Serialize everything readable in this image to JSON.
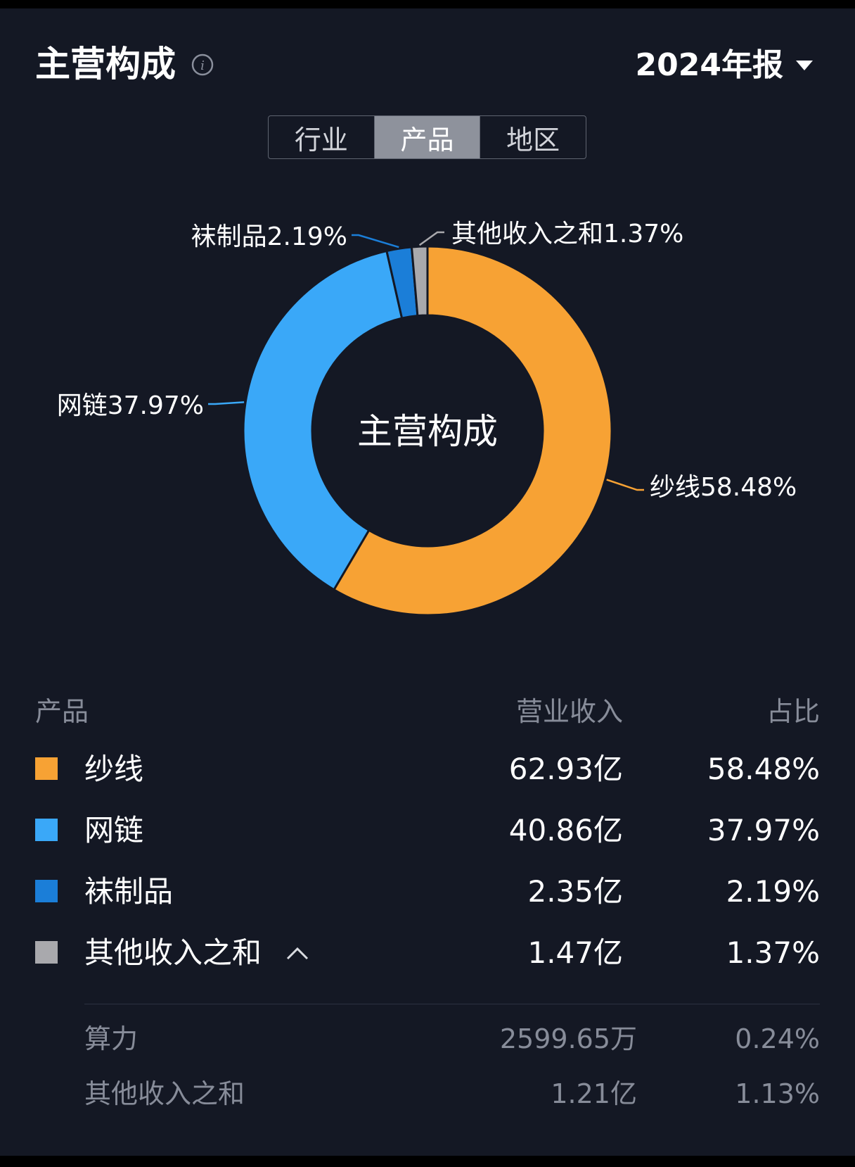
{
  "header": {
    "title": "主营构成",
    "period": "2024年报"
  },
  "tabs": [
    {
      "label": "行业",
      "active": false
    },
    {
      "label": "产品",
      "active": true
    },
    {
      "label": "地区",
      "active": false
    }
  ],
  "chart_data": {
    "type": "pie",
    "center_label": "主营构成",
    "categories": [
      "纱线",
      "网链",
      "袜制品",
      "其他收入之和"
    ],
    "values": [
      58.48,
      37.97,
      2.19,
      1.37
    ],
    "labels": [
      "纱线58.48%",
      "网链37.97%",
      "袜制品2.19%",
      "其他收入之和1.37%"
    ],
    "colors": [
      "#F7A234",
      "#3AA8F8",
      "#1B7ED8",
      "#A9A9AD"
    ],
    "unit": "%"
  },
  "table": {
    "headers": {
      "name": "产品",
      "revenue": "营业收入",
      "share": "占比"
    },
    "rows": [
      {
        "name": "纱线",
        "revenue": "62.93亿",
        "share": "58.48%",
        "color": "#F7A234"
      },
      {
        "name": "网链",
        "revenue": "40.86亿",
        "share": "37.97%",
        "color": "#3AA8F8"
      },
      {
        "name": "袜制品",
        "revenue": "2.35亿",
        "share": "2.19%",
        "color": "#1B7ED8"
      },
      {
        "name": "其他收入之和",
        "revenue": "1.47亿",
        "share": "1.37%",
        "color": "#A9A9AD",
        "expanded": true
      }
    ],
    "sub_rows": [
      {
        "name": "算力",
        "revenue": "2599.65万",
        "share": "0.24%"
      },
      {
        "name": "其他收入之和",
        "revenue": "1.21亿",
        "share": "1.13%"
      }
    ]
  },
  "icons": {
    "info": "info-icon",
    "period_caret": "caret-down-icon",
    "expand": "chevron-up-icon"
  }
}
